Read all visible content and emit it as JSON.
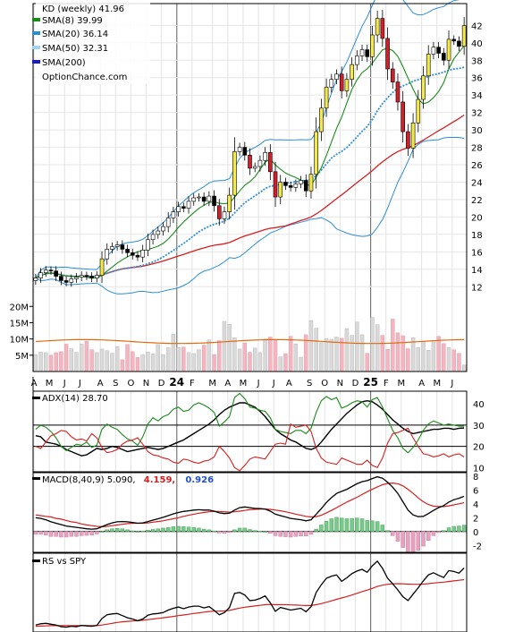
{
  "chart_data": [
    {
      "type": "candlestick",
      "panel": "price",
      "title": "KD (weekly) 41.96",
      "watermark": "OptionChance.com",
      "legend": [
        {
          "label": "SMA(8) 39.99",
          "color": "#1a8a1a"
        },
        {
          "label": "SMA(20) 36.14",
          "color": "#2b8fd6"
        },
        {
          "label": "SMA(50) 32.31",
          "color": "#9fd3f0"
        },
        {
          "label": "SMA(200)",
          "color": "#1a1acc"
        }
      ],
      "legend_position": "top-left",
      "ylim": [
        11,
        44.5
      ],
      "y_ticks": [
        12,
        14,
        16,
        18,
        20,
        22,
        24,
        26,
        28,
        30,
        32,
        34,
        36,
        38,
        40,
        42
      ],
      "x_labels": [
        "A",
        "M",
        "J",
        "J",
        "A",
        "S",
        "O",
        "N",
        "D",
        "24",
        "F",
        "M",
        "A",
        "M",
        "J",
        "J",
        "A",
        "S",
        "O",
        "N",
        "D",
        "25",
        "F",
        "M",
        "A",
        "M",
        "J"
      ],
      "close": [
        13.0,
        13.6,
        13.9,
        13.8,
        13.2,
        12.7,
        12.5,
        12.9,
        13.1,
        13.3,
        13.2,
        13.0,
        13.3,
        15.2,
        16.3,
        16.6,
        16.8,
        16.3,
        15.9,
        15.6,
        15.4,
        16.2,
        17.4,
        18.0,
        18.4,
        18.9,
        19.9,
        20.6,
        21.2,
        21.0,
        21.8,
        22.2,
        22.3,
        21.8,
        22.4,
        21.3,
        19.8,
        20.6,
        22.5,
        27.5,
        28.0,
        27.1,
        25.6,
        25.8,
        26.5,
        27.4,
        25.2,
        22.3,
        24.0,
        23.6,
        23.4,
        23.8,
        24.2,
        23.0,
        24.9,
        29.8,
        32.5,
        34.9,
        35.8,
        36.4,
        34.5,
        35.8,
        37.5,
        38.5,
        39.2,
        38.4,
        40.9,
        42.8,
        40.5,
        37.0,
        35.5,
        33.2,
        29.8,
        27.9,
        30.8,
        33.5,
        36.2,
        38.7,
        39.5,
        38.8,
        38.0,
        40.4,
        40.2,
        39.6,
        41.96
      ],
      "volume_ylim": [
        0,
        22
      ],
      "volume_ticks": [
        "5M",
        "10M",
        "15M",
        "20M"
      ],
      "volume": [
        5.2,
        6.0,
        5.8,
        5.0,
        5.8,
        6.1,
        8.4,
        7.0,
        5.9,
        8.4,
        9.3,
        6.7,
        5.8,
        6.9,
        6.4,
        5.6,
        7.6,
        3.6,
        8.3,
        6.1,
        4.3,
        5.2,
        6.0,
        5.4,
        8.3,
        5.2,
        7.3,
        11.5,
        7.4,
        7.5,
        5.8,
        5.5,
        6.7,
        8.1,
        9.7,
        5.2,
        9.5,
        15.4,
        14.5,
        10.4,
        6.9,
        8.8,
        5.9,
        7.2,
        5.8,
        10.0,
        10.6,
        9.7,
        4.5,
        5.5,
        10.8,
        8.5,
        4.4,
        11.3,
        15.6,
        13.3,
        8.9,
        10.1,
        9.9,
        10.6,
        10.2,
        13.2,
        11.1,
        15.2,
        11.3,
        5.6,
        16.6,
        14.4,
        11.1,
        6.8,
        16.1,
        11.9,
        11.0,
        7.0,
        10.4,
        7.4,
        9.1,
        6.5,
        9.1,
        10.8,
        8.6,
        7.4,
        6.7,
        5.6,
        2.0
      ],
      "volume_avg": 10
    },
    {
      "type": "line",
      "panel": "adx",
      "legend": [
        {
          "label": "ADX(14) 28.70",
          "color": "#000000"
        }
      ],
      "ylim": [
        8,
        46
      ],
      "y_ticks": [
        10,
        20,
        30,
        40
      ],
      "reference_lines": [
        20,
        30
      ],
      "series": [
        {
          "name": "ADX(14) 28.70",
          "color": "#000000",
          "values": [
            25.0,
            24.5,
            22.0,
            21.5,
            21.0,
            20.0,
            18.5,
            17.5,
            16.5,
            15.5,
            16.0,
            17.5,
            19.0,
            18.5,
            19.0,
            20.0,
            19.5,
            18.5,
            17.5,
            18.0,
            18.5,
            19.0,
            19.5,
            19.0,
            18.5,
            19.0,
            20.0,
            21.0,
            22.0,
            23.0,
            24.5,
            26.0,
            27.5,
            29.0,
            30.5,
            32.5,
            35.0,
            37.0,
            38.5,
            39.5,
            40.5,
            40.5,
            39.5,
            38.5,
            36.5,
            34.0,
            31.0,
            28.0,
            26.0,
            24.5,
            23.0,
            22.0,
            20.5,
            19.0,
            18.5,
            19.5,
            22.0,
            25.0,
            28.0,
            30.5,
            33.0,
            35.5,
            37.5,
            39.5,
            41.0,
            41.5,
            41.0,
            39.5,
            37.5,
            35.0,
            32.5,
            30.5,
            28.5,
            27.0,
            26.0,
            26.5,
            27.0,
            27.5,
            28.0,
            28.0,
            28.5,
            28.5,
            28.0,
            28.5,
            28.7
          ]
        },
        {
          "name": "+DI",
          "color": "#1a8a1a",
          "values": [
            28.0,
            30.0,
            29.0,
            27.0,
            24.0,
            20.0,
            18.0,
            19.5,
            21.0,
            20.5,
            22.0,
            19.5,
            20.5,
            28.0,
            30.5,
            29.0,
            28.0,
            25.5,
            23.5,
            22.5,
            20.5,
            24.5,
            30.5,
            33.5,
            32.0,
            34.0,
            35.0,
            37.5,
            38.5,
            36.5,
            37.0,
            39.5,
            40.5,
            39.5,
            38.0,
            36.0,
            29.5,
            31.5,
            34.0,
            43.0,
            45.0,
            42.5,
            38.5,
            38.0,
            37.0,
            36.5,
            33.5,
            28.0,
            27.0,
            26.5,
            26.0,
            27.5,
            27.5,
            26.0,
            28.5,
            36.0,
            41.5,
            43.5,
            42.0,
            43.0,
            38.0,
            39.0,
            40.5,
            41.5,
            41.0,
            38.5,
            42.0,
            43.0,
            38.5,
            33.0,
            27.5,
            24.0,
            19.0,
            17.0,
            19.5,
            23.0,
            27.5,
            30.5,
            32.0,
            31.0,
            30.0,
            30.5,
            30.0,
            29.5,
            29.5
          ]
        },
        {
          "name": "-DI",
          "color": "#d42020",
          "values": [
            20.0,
            19.0,
            22.0,
            25.0,
            26.0,
            27.5,
            27.0,
            24.5,
            23.0,
            23.5,
            22.5,
            26.0,
            24.0,
            19.5,
            17.0,
            17.5,
            18.5,
            21.0,
            22.5,
            23.0,
            24.0,
            21.0,
            17.5,
            16.0,
            15.5,
            14.5,
            14.0,
            12.5,
            12.0,
            14.0,
            13.5,
            12.5,
            12.0,
            13.0,
            13.5,
            15.0,
            20.0,
            17.5,
            14.5,
            10.0,
            8.5,
            11.0,
            14.0,
            15.0,
            14.5,
            14.0,
            17.5,
            21.0,
            21.5,
            21.0,
            30.5,
            29.0,
            29.5,
            30.0,
            27.0,
            19.0,
            14.5,
            12.5,
            12.0,
            11.5,
            14.5,
            13.5,
            12.5,
            11.5,
            11.5,
            13.5,
            11.0,
            10.0,
            14.5,
            21.5,
            26.0,
            26.5,
            27.5,
            28.5,
            24.0,
            20.0,
            16.5,
            16.0,
            15.0,
            15.5,
            16.5,
            15.0,
            16.0,
            16.5,
            15.0
          ]
        }
      ]
    },
    {
      "type": "line",
      "panel": "macd",
      "legend": [
        {
          "label": "MACD(8,40,9) 5.090,",
          "color": "#000000"
        },
        {
          "label": "4.159,",
          "color": "#d42020"
        },
        {
          "label": "0.926",
          "color": "#1f4fd6"
        }
      ],
      "ylim": [
        -3,
        8.5
      ],
      "y_ticks": [
        -2,
        0,
        2,
        4,
        6,
        8
      ],
      "series": [
        {
          "name": "MACD",
          "color": "#000000",
          "values": [
            2.0,
            1.9,
            1.7,
            1.4,
            1.2,
            1.0,
            0.8,
            0.7,
            0.6,
            0.5,
            0.4,
            0.35,
            0.4,
            0.7,
            1.0,
            1.25,
            1.4,
            1.45,
            1.4,
            1.3,
            1.2,
            1.25,
            1.45,
            1.65,
            1.85,
            2.05,
            2.3,
            2.55,
            2.75,
            2.9,
            3.0,
            3.1,
            3.15,
            3.1,
            3.1,
            2.95,
            2.7,
            2.6,
            2.65,
            3.1,
            3.45,
            3.55,
            3.45,
            3.35,
            3.3,
            3.25,
            2.95,
            2.5,
            2.3,
            2.1,
            1.9,
            1.8,
            1.7,
            1.55,
            1.7,
            2.5,
            3.3,
            4.2,
            4.9,
            5.5,
            5.8,
            6.1,
            6.5,
            6.9,
            7.2,
            7.35,
            7.65,
            7.9,
            7.7,
            7.1,
            6.4,
            5.5,
            4.3,
            3.1,
            2.4,
            2.15,
            2.2,
            2.6,
            3.05,
            3.45,
            3.75,
            4.25,
            4.6,
            4.8,
            5.09
          ]
        },
        {
          "name": "Signal",
          "color": "#d42020",
          "values": [
            2.4,
            2.3,
            2.2,
            2.1,
            1.9,
            1.8,
            1.6,
            1.4,
            1.3,
            1.1,
            0.95,
            0.85,
            0.75,
            0.7,
            0.75,
            0.85,
            0.95,
            1.05,
            1.15,
            1.2,
            1.2,
            1.2,
            1.25,
            1.35,
            1.45,
            1.55,
            1.7,
            1.85,
            2.0,
            2.2,
            2.35,
            2.5,
            2.65,
            2.75,
            2.85,
            2.9,
            2.9,
            2.85,
            2.8,
            2.85,
            2.95,
            3.05,
            3.15,
            3.2,
            3.25,
            3.25,
            3.2,
            3.1,
            3.0,
            2.85,
            2.7,
            2.5,
            2.35,
            2.2,
            2.1,
            2.15,
            2.35,
            2.7,
            3.05,
            3.45,
            3.85,
            4.25,
            4.6,
            4.95,
            5.35,
            5.75,
            6.1,
            6.45,
            6.75,
            6.95,
            7.0,
            6.9,
            6.6,
            6.1,
            5.5,
            4.85,
            4.3,
            3.9,
            3.65,
            3.6,
            3.6,
            3.7,
            3.85,
            4.0,
            4.16
          ]
        },
        {
          "name": "Histogram",
          "color": "#2ea84a",
          "values": [
            -0.4,
            -0.4,
            -0.5,
            -0.7,
            -0.7,
            -0.8,
            -0.8,
            -0.7,
            -0.7,
            -0.6,
            -0.55,
            -0.5,
            -0.35,
            0.0,
            0.25,
            0.4,
            0.45,
            0.4,
            0.25,
            0.1,
            0.0,
            0.05,
            0.2,
            0.3,
            0.4,
            0.5,
            0.6,
            0.7,
            0.75,
            0.7,
            0.65,
            0.6,
            0.5,
            0.35,
            0.25,
            0.05,
            -0.2,
            -0.25,
            -0.15,
            0.25,
            0.5,
            0.5,
            0.3,
            0.15,
            0.05,
            0.0,
            -0.25,
            -0.6,
            -0.7,
            -0.75,
            -0.8,
            -0.7,
            -0.65,
            -0.65,
            -0.4,
            0.35,
            0.95,
            1.5,
            1.85,
            2.05,
            1.95,
            1.85,
            1.9,
            1.95,
            1.85,
            1.6,
            1.55,
            1.45,
            0.95,
            0.15,
            -0.6,
            -1.4,
            -2.3,
            -3.0,
            -3.1,
            -2.7,
            -2.1,
            -1.3,
            -0.6,
            -0.15,
            0.15,
            0.55,
            0.75,
            0.8,
            0.93
          ]
        }
      ]
    },
    {
      "type": "line",
      "panel": "relative-strength",
      "legend": [
        {
          "label": "RS vs SPY",
          "color": "#000000"
        }
      ],
      "series": [
        {
          "name": "RS vs SPY",
          "color": "#000000",
          "values": [
            2.6,
            2.9,
            3.0,
            2.8,
            2.6,
            2.2,
            2.1,
            2.3,
            2.2,
            2.5,
            2.4,
            2.3,
            2.5,
            4.1,
            5.0,
            5.2,
            5.3,
            4.8,
            4.3,
            4.0,
            3.6,
            4.0,
            4.9,
            5.2,
            5.3,
            5.5,
            6.1,
            6.5,
            6.8,
            6.4,
            6.8,
            7.0,
            7.0,
            6.6,
            6.9,
            6.0,
            5.0,
            5.5,
            6.7,
            10.0,
            10.2,
            9.6,
            8.3,
            8.4,
            8.8,
            9.4,
            7.8,
            5.8,
            6.7,
            6.4,
            6.1,
            6.3,
            6.5,
            5.7,
            6.9,
            10.2,
            12.0,
            13.5,
            14.0,
            14.3,
            12.8,
            13.6,
            14.6,
            15.2,
            15.6,
            14.9,
            16.4,
            17.5,
            15.8,
            13.5,
            12.2,
            10.8,
            9.2,
            8.3,
            9.8,
            11.3,
            12.9,
            14.3,
            14.8,
            14.2,
            13.7,
            15.3,
            15.1,
            14.7,
            15.9
          ]
        },
        {
          "name": "SMA",
          "color": "#d42020",
          "values": [
            2.3,
            2.35,
            2.4,
            2.45,
            2.45,
            2.45,
            2.45,
            2.45,
            2.45,
            2.45,
            2.45,
            2.45,
            2.45,
            2.6,
            2.8,
            3.0,
            3.2,
            3.35,
            3.45,
            3.55,
            3.6,
            3.7,
            3.85,
            4.0,
            4.15,
            4.3,
            4.45,
            4.6,
            4.8,
            4.95,
            5.1,
            5.3,
            5.45,
            5.6,
            5.75,
            5.85,
            5.85,
            5.9,
            6.0,
            6.3,
            6.55,
            6.75,
            6.9,
            7.05,
            7.2,
            7.35,
            7.4,
            7.35,
            7.35,
            7.35,
            7.3,
            7.25,
            7.2,
            7.15,
            7.15,
            7.35,
            7.6,
            7.9,
            8.25,
            8.6,
            8.9,
            9.25,
            9.6,
            10.0,
            10.4,
            10.75,
            11.15,
            11.6,
            11.9,
            12.1,
            12.2,
            12.25,
            12.2,
            12.15,
            12.1,
            12.1,
            12.15,
            12.25,
            12.4,
            12.5,
            12.6,
            12.75,
            12.9,
            13.05,
            13.2
          ]
        }
      ]
    }
  ]
}
